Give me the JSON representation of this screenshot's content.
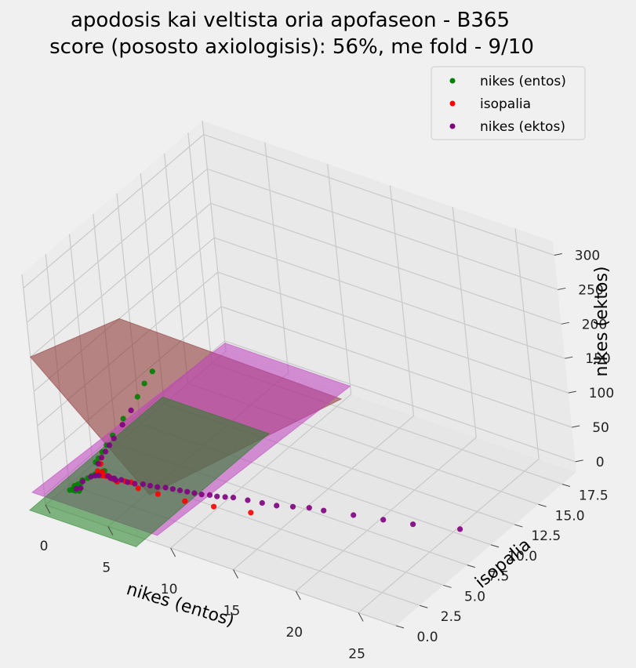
{
  "chart_data": {
    "type": "scatter",
    "title_lines": [
      "apodosis kai veltista oria apofaseon - B365",
      "score (pososto axiologisis): 56%, me fold - 9/10"
    ],
    "xlabel": "nikes (entos)",
    "ylabel": "isopalia",
    "zlabel": "nikes (ektos)",
    "xlim": [
      0,
      28
    ],
    "ylim": [
      0,
      19
    ],
    "zlim": [
      -15,
      320
    ],
    "x_ticks": [
      0,
      5,
      10,
      15,
      20,
      25
    ],
    "y_ticks": [
      "0.0",
      "2.5",
      "5.0",
      "7.5",
      "10.0",
      "12.5",
      "15.0",
      "17.5"
    ],
    "z_ticks": [
      0,
      50,
      100,
      150,
      200,
      250,
      300
    ],
    "grid": true,
    "legend_position": "top-right",
    "series": [
      {
        "name": "nikes (entos)",
        "color": "#008000",
        "points": [
          [
            1.2,
            1.1,
            1.1
          ],
          [
            1.4,
            1.2,
            1.1
          ],
          [
            1.3,
            1.3,
            1.2
          ],
          [
            1.6,
            1.2,
            1.3
          ],
          [
            1.5,
            1.4,
            1.2
          ],
          [
            1.8,
            1.3,
            1.4
          ],
          [
            1.7,
            1.5,
            1.3
          ],
          [
            1.2,
            1.6,
            1.5
          ],
          [
            1.3,
            1.8,
            1.7
          ],
          [
            1.4,
            2.0,
            2.0
          ],
          [
            1.3,
            2.3,
            2.3
          ],
          [
            1.5,
            2.6,
            2.7
          ],
          [
            1.6,
            2.9,
            3.2
          ],
          [
            1.7,
            3.1,
            3.6
          ],
          [
            1.9,
            3.3,
            4.1
          ],
          [
            2.0,
            3.5,
            4.7
          ],
          [
            2.1,
            3.6,
            5.3
          ],
          [
            1.1,
            4.0,
            7
          ],
          [
            1.1,
            4.3,
            9
          ],
          [
            1.05,
            4.8,
            12
          ],
          [
            1.03,
            5.3,
            16
          ],
          [
            1.02,
            6.0,
            22
          ],
          [
            1.01,
            7.2,
            32
          ],
          [
            1.01,
            8.8,
            45
          ],
          [
            1.01,
            9.6,
            55
          ],
          [
            1.01,
            10.5,
            62
          ]
        ]
      },
      {
        "name": "isopalia",
        "color": "#ff0000",
        "points": [
          [
            1.7,
            3.4,
            4.8
          ],
          [
            2.0,
            3.5,
            4.5
          ],
          [
            2.2,
            3.2,
            3.7
          ],
          [
            2.4,
            3.3,
            3.2
          ],
          [
            2.6,
            3.4,
            2.7
          ],
          [
            1.5,
            4.0,
            7
          ],
          [
            3.0,
            3.3,
            2.5
          ],
          [
            3.4,
            3.2,
            2.3
          ],
          [
            3.8,
            3.5,
            2.1
          ],
          [
            4.2,
            3.6,
            1.9
          ],
          [
            5.0,
            3.3,
            1.7
          ],
          [
            6.5,
            3.4,
            1.6
          ],
          [
            8.5,
            3.6,
            1.4
          ],
          [
            10.5,
            4.0,
            1.3
          ],
          [
            13.0,
            4.6,
            1.2
          ]
        ]
      },
      {
        "name": "nikes (ektos)",
        "color": "#800080",
        "points": [
          [
            2.5,
            3.4,
            2.7
          ],
          [
            2.8,
            3.3,
            2.6
          ],
          [
            3.0,
            3.4,
            2.5
          ],
          [
            3.2,
            3.3,
            2.4
          ],
          [
            3.5,
            3.5,
            2.2
          ],
          [
            4.0,
            3.5,
            2.0
          ],
          [
            4.5,
            3.6,
            1.8
          ],
          [
            5.0,
            3.8,
            1.7
          ],
          [
            5.5,
            3.9,
            1.6
          ],
          [
            6.0,
            4.0,
            1.55
          ],
          [
            6.5,
            4.2,
            1.5
          ],
          [
            7.0,
            4.3,
            1.45
          ],
          [
            7.5,
            4.4,
            1.4
          ],
          [
            8.0,
            4.5,
            1.37
          ],
          [
            8.5,
            4.6,
            1.33
          ],
          [
            9.0,
            4.7,
            1.3
          ],
          [
            9.5,
            4.9,
            1.28
          ],
          [
            10.0,
            5.0,
            1.26
          ],
          [
            10.5,
            5.2,
            1.24
          ],
          [
            11.0,
            5.4,
            1.22
          ],
          [
            12.0,
            5.6,
            1.2
          ],
          [
            13.0,
            5.8,
            1.18
          ],
          [
            14.0,
            6.0,
            1.16
          ],
          [
            15.0,
            6.4,
            1.14
          ],
          [
            16.0,
            6.8,
            1.12
          ],
          [
            17.0,
            7.0,
            1.11
          ],
          [
            19.0,
            7.5,
            1.1
          ],
          [
            21.0,
            8.0,
            1.09
          ],
          [
            23.0,
            8.5,
            1.08
          ],
          [
            26.0,
            9.5,
            1.05
          ],
          [
            1.5,
            1.4,
            1.3
          ],
          [
            1.7,
            1.6,
            1.4
          ],
          [
            1.4,
            2.2,
            2.1
          ],
          [
            1.6,
            2.8,
            3.0
          ],
          [
            1.8,
            3.0,
            3.4
          ],
          [
            2.0,
            3.1,
            3.8
          ],
          [
            1.3,
            4.0,
            6.0
          ],
          [
            1.2,
            4.5,
            8.5
          ],
          [
            1.15,
            5.0,
            11
          ],
          [
            1.1,
            5.5,
            14
          ],
          [
            1.1,
            6.0,
            18
          ],
          [
            1.07,
            7.0,
            26
          ],
          [
            1.05,
            8.0,
            35
          ]
        ]
      }
    ],
    "planes": [
      {
        "color": "#8b2d2d",
        "opacity": 0.55
      },
      {
        "color": "#c040c0",
        "opacity": 0.55
      },
      {
        "color": "#208020",
        "opacity": 0.55
      }
    ]
  }
}
